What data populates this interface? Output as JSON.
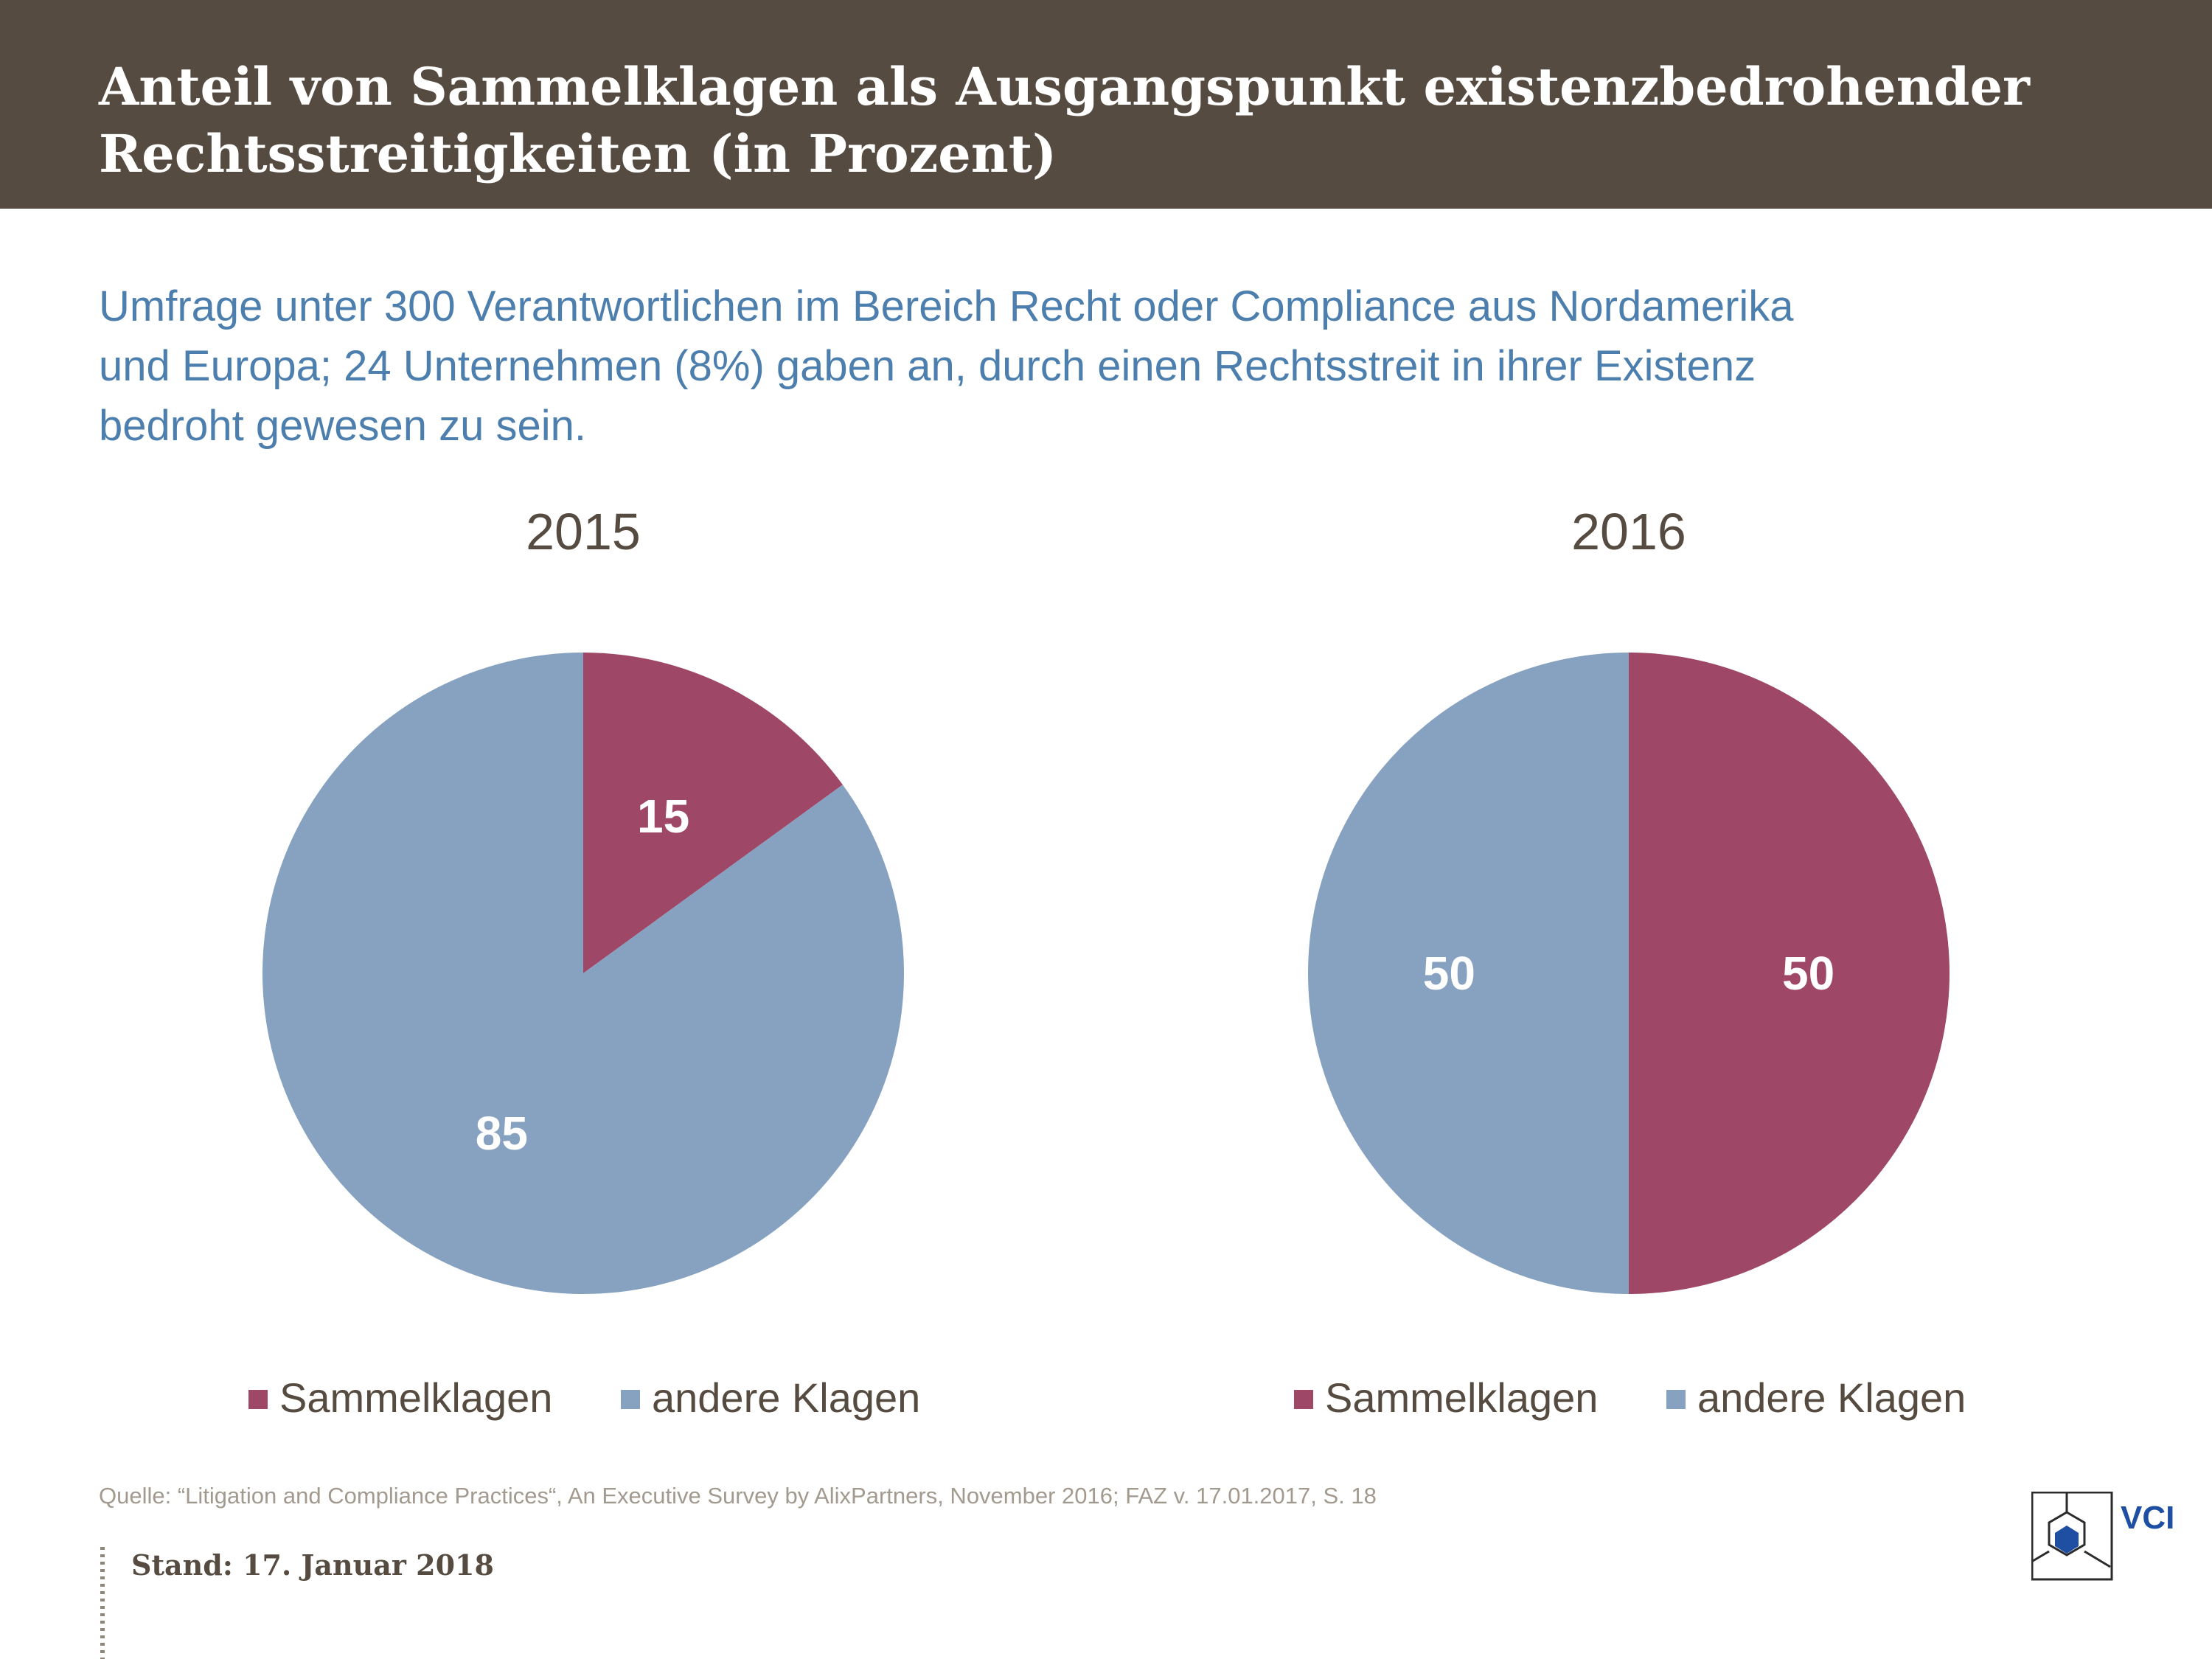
{
  "header": {
    "title_line1": "Anteil von Sammelklagen als Ausgangspunkt existenzbedrohender",
    "title_line2": "Rechtsstreitigkeiten (in Prozent)"
  },
  "subtitle": {
    "line1": "Umfrage unter 300 Verantwortlichen im Bereich Recht oder Compliance aus Nordamerika",
    "line2": "und Europa; 24 Unternehmen (8%) gaben an, durch einen Rechtsstreit in ihrer Existenz",
    "line3": "bedroht gewesen zu sein."
  },
  "chart_data": [
    {
      "type": "pie",
      "title": "2015",
      "categories": [
        "Sammelklagen",
        "andere Klagen"
      ],
      "values": [
        15,
        85
      ],
      "labels": [
        "15",
        "85"
      ],
      "colors": [
        "#9e4766",
        "#87a2c0"
      ],
      "legend": "bottom"
    },
    {
      "type": "pie",
      "title": "2016",
      "categories": [
        "Sammelklagen",
        "andere Klagen"
      ],
      "values": [
        50,
        50
      ],
      "labels": [
        "50",
        "50"
      ],
      "colors": [
        "#9e4766",
        "#87a2c0"
      ],
      "legend": "bottom"
    }
  ],
  "footer": {
    "source": "Quelle: “Litigation and Compliance Practices“, An Executive Survey by AlixPartners, November 2016; FAZ v. 17.01.2017, S. 18",
    "stand": "Stand: 17. Januar 2018"
  },
  "logo": {
    "text": "VCI",
    "icon": "vci-hexagon-logo-icon"
  },
  "colors": {
    "header_bg": "#564b40",
    "accent_blue": "#4d7fae",
    "sammelklagen": "#9e4766",
    "andere_klagen": "#87a2c0"
  }
}
